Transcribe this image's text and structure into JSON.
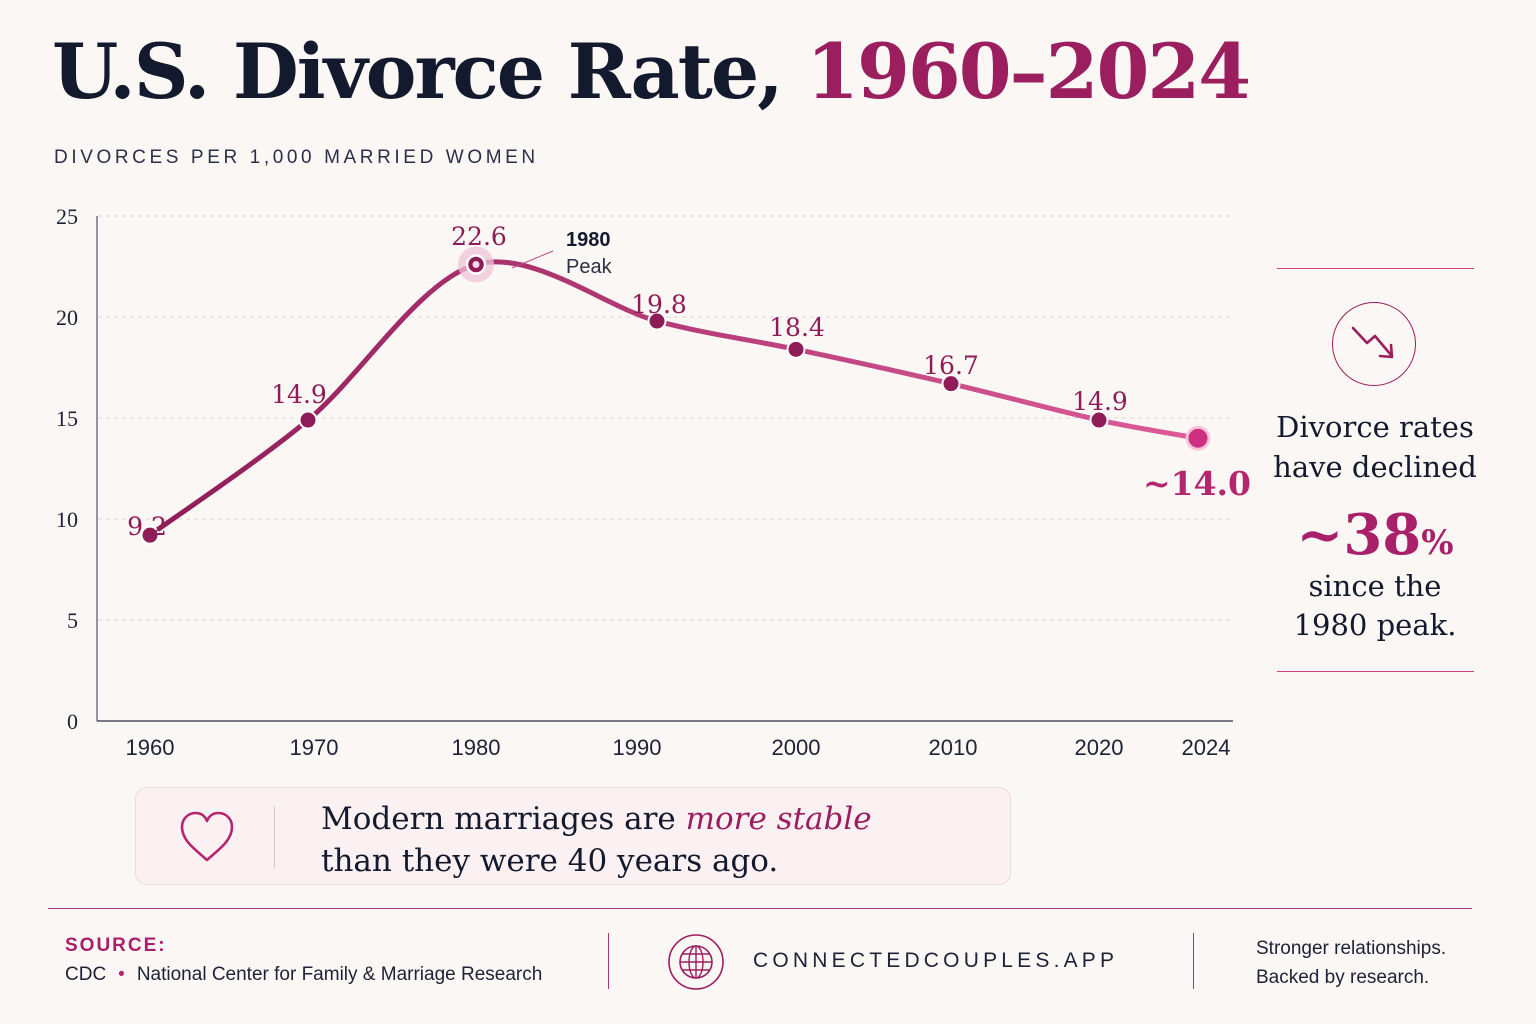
{
  "header": {
    "title_main": "U.S. Divorce Rate, ",
    "title_years": "1960–2024",
    "subtitle": "DIVORCES PER 1,000 MARRIED WOMEN"
  },
  "chart_data": {
    "type": "line",
    "title": "U.S. Divorce Rate, 1960–2024",
    "subtitle": "Divorces per 1,000 married women",
    "x": [
      1960,
      1970,
      1980,
      1990,
      2000,
      2010,
      2020,
      2024
    ],
    "xticks": [
      "1960",
      "1970",
      "1980",
      "1990",
      "2000",
      "2010",
      "2020",
      "2024"
    ],
    "series": [
      {
        "values": [
          9.2,
          14.9,
          22.6,
          19.8,
          18.4,
          16.7,
          14.9,
          14.0
        ],
        "data_labels": [
          "9.2",
          "14.9",
          "22.6",
          "19.8",
          "18.4",
          "16.7",
          "14.9",
          "~14.0"
        ]
      }
    ],
    "ylim": [
      0,
      25
    ],
    "yticks": [
      0,
      5,
      10,
      15,
      20,
      25
    ],
    "grid": "horizontal dashed",
    "annotation": {
      "year": "1980",
      "text": "Peak"
    },
    "colors": {
      "line_start": "#8f1c57",
      "line_end": "#dc5c98",
      "point": "#8f1c57"
    }
  },
  "side_panel": {
    "line1": "Divorce rates",
    "line2": "have declined",
    "percent_value": "~38",
    "percent_sign": "%",
    "line3": "since the",
    "line4": "1980 peak.",
    "icon": "trend-down-icon"
  },
  "callout": {
    "icon": "heart-icon",
    "text_before": "Modern marriages are ",
    "text_emphasis": "more stable",
    "text_line2": "than they were 40 years ago."
  },
  "footer": {
    "source_heading": "SOURCE:",
    "source_1": "CDC",
    "source_separator": "•",
    "source_2": "National Center for Family & Marriage Research",
    "website": "CONNECTEDCOUPLES.APP",
    "tagline_1": "Stronger relationships.",
    "tagline_2": "Backed by research."
  },
  "colors": {
    "accent": "#9b1e5f",
    "accent_bright": "#b5266f",
    "text": "#141a2e",
    "background": "#faf7f5"
  }
}
